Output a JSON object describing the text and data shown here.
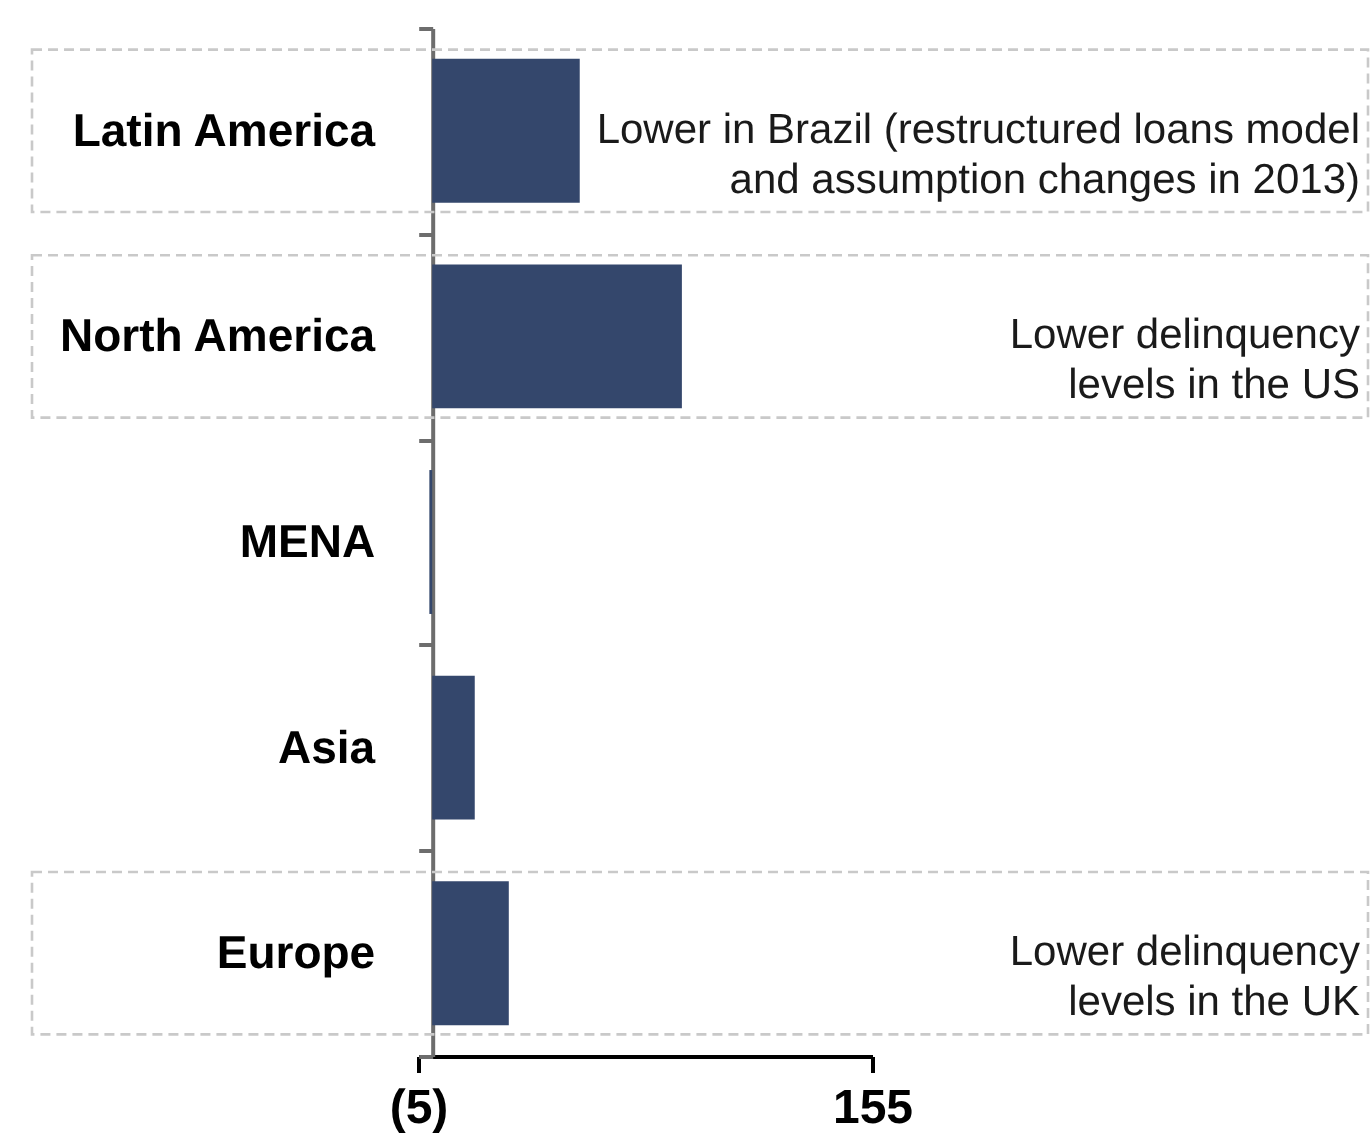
{
  "chart_data": {
    "type": "bar",
    "orientation": "horizontal",
    "categories": [
      "Latin America",
      "North America",
      "MENA",
      "Asia",
      "Europe"
    ],
    "values": [
      52,
      88,
      -1,
      15,
      27
    ],
    "color": "#34476c",
    "xlim": [
      -5,
      155
    ],
    "xticks": [
      {
        "value": -5,
        "label": "(5)"
      },
      155
    ],
    "annotations": [
      "Lower in Brazil (restructured loans model\nand assumption changes in 2013)",
      "Lower delinquency\nlevels in the US",
      "Lower delinquency\nlevels in the UK"
    ]
  }
}
